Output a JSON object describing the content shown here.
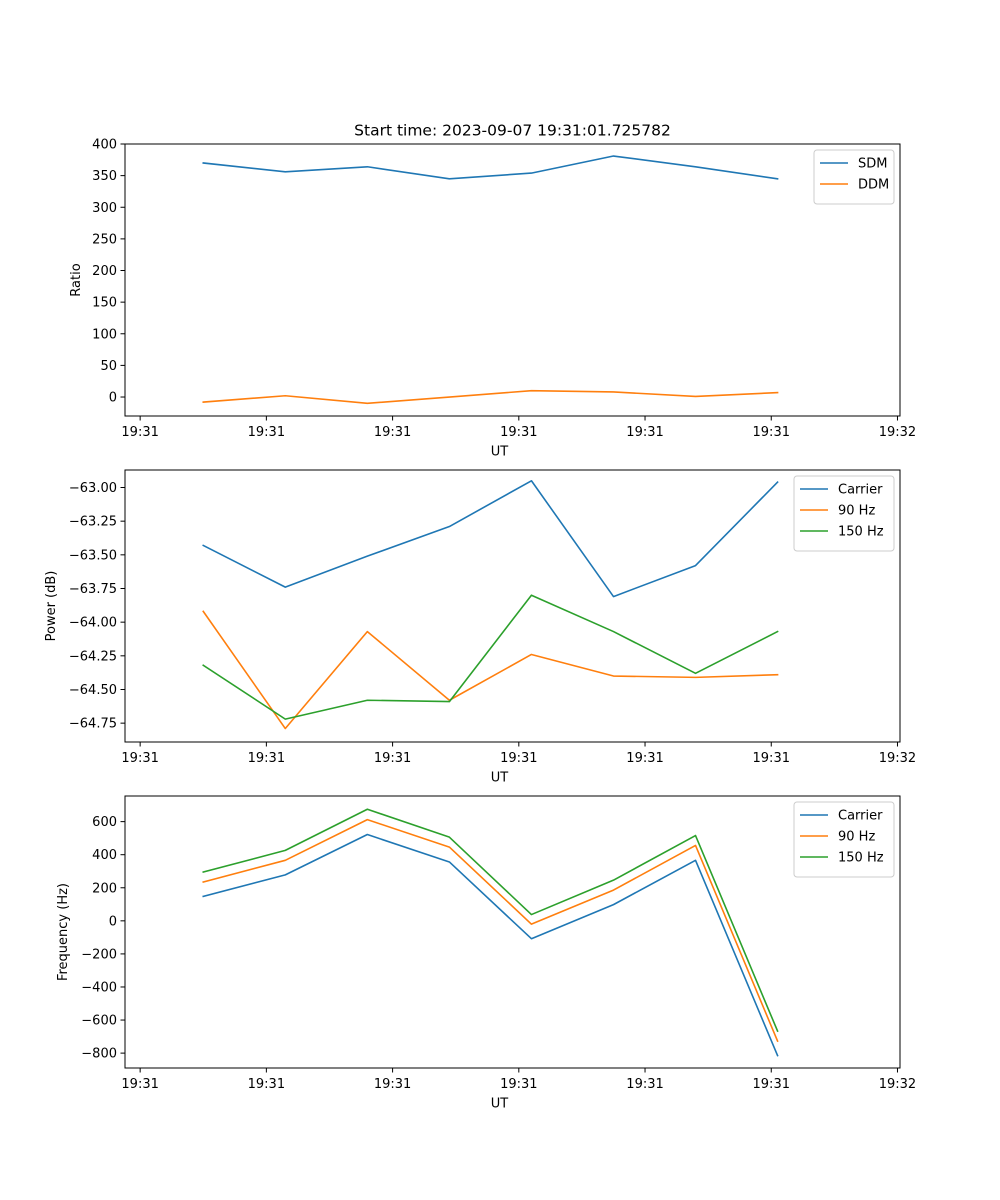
{
  "figure_title": "Start time: 2023-09-07 19:31:01.725782",
  "chart_data": [
    {
      "type": "line",
      "title": "Start time: 2023-09-07 19:31:01.725782",
      "xlabel": "UT",
      "ylabel": "Ratio",
      "x_ticks": [
        "19:31",
        "19:31",
        "19:31",
        "19:31",
        "19:31",
        "19:31",
        "19:32"
      ],
      "x_points": [
        0.5,
        1.15,
        1.8,
        2.45,
        3.1,
        3.75,
        4.4,
        5.05
      ],
      "xlim": [
        -0.12,
        6.02
      ],
      "ylim": [
        -30,
        400
      ],
      "y_ticks": [
        0,
        50,
        100,
        150,
        200,
        250,
        300,
        350,
        400
      ],
      "y_tick_labels": [
        "0",
        "50",
        "100",
        "150",
        "200",
        "250",
        "300",
        "350",
        "400"
      ],
      "legend_position": "top-right",
      "series": [
        {
          "name": "SDM",
          "color": "#1f77b4",
          "values": [
            370,
            356,
            364,
            345,
            354,
            381,
            364,
            345
          ]
        },
        {
          "name": "DDM",
          "color": "#ff7f0e",
          "values": [
            -8,
            2,
            -10,
            0,
            10,
            8,
            1,
            7
          ]
        }
      ]
    },
    {
      "type": "line",
      "title": "",
      "xlabel": "UT",
      "ylabel": "Power (dB)",
      "x_ticks": [
        "19:31",
        "19:31",
        "19:31",
        "19:31",
        "19:31",
        "19:31",
        "19:32"
      ],
      "x_points": [
        0.5,
        1.15,
        1.8,
        2.45,
        3.1,
        3.75,
        4.4,
        5.05
      ],
      "xlim": [
        -0.12,
        6.02
      ],
      "ylim": [
        -64.89,
        -62.87
      ],
      "y_ticks": [
        -63.0,
        -63.25,
        -63.5,
        -63.75,
        -64.0,
        -64.25,
        -64.5,
        -64.75
      ],
      "y_tick_labels": [
        "−63.00",
        "−63.25",
        "−63.50",
        "−63.75",
        "−64.00",
        "−64.25",
        "−64.50",
        "−64.75"
      ],
      "legend_position": "top-right",
      "series": [
        {
          "name": "Carrier",
          "color": "#1f77b4",
          "values": [
            -63.43,
            -63.74,
            -63.51,
            -63.29,
            -62.95,
            -63.81,
            -63.58,
            -62.96
          ]
        },
        {
          "name": "90 Hz",
          "color": "#ff7f0e",
          "values": [
            -63.92,
            -64.79,
            -64.07,
            -64.58,
            -64.24,
            -64.4,
            -64.41,
            -64.39
          ]
        },
        {
          "name": "150 Hz",
          "color": "#2ca02c",
          "values": [
            -64.32,
            -64.72,
            -64.58,
            -64.59,
            -63.8,
            -64.07,
            -64.38,
            -64.07
          ]
        }
      ]
    },
    {
      "type": "line",
      "title": "",
      "xlabel": "UT",
      "ylabel": "Frequency (Hz)",
      "x_ticks": [
        "19:31",
        "19:31",
        "19:31",
        "19:31",
        "19:31",
        "19:31",
        "19:32"
      ],
      "x_points": [
        0.5,
        1.15,
        1.8,
        2.45,
        3.1,
        3.75,
        4.4,
        5.05
      ],
      "xlim": [
        -0.12,
        6.02
      ],
      "ylim": [
        -890,
        755
      ],
      "y_ticks": [
        600,
        400,
        200,
        0,
        -200,
        -400,
        -600,
        -800
      ],
      "y_tick_labels": [
        "600",
        "400",
        "200",
        "0",
        "−200",
        "−400",
        "−600",
        "−800"
      ],
      "legend_position": "top-right",
      "series": [
        {
          "name": "Carrier",
          "color": "#1f77b4",
          "values": [
            148,
            278,
            522,
            356,
            -108,
            98,
            366,
            -815
          ]
        },
        {
          "name": "90 Hz",
          "color": "#ff7f0e",
          "values": [
            235,
            366,
            612,
            446,
            -20,
            186,
            456,
            -727
          ]
        },
        {
          "name": "150 Hz",
          "color": "#2ca02c",
          "values": [
            295,
            426,
            675,
            506,
            38,
            246,
            516,
            -667
          ]
        }
      ]
    }
  ]
}
